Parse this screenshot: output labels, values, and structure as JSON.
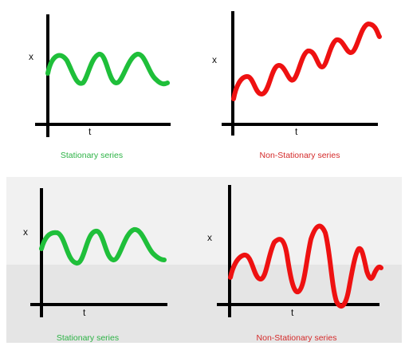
{
  "figure": {
    "panels": [
      {
        "id": "top-stationary",
        "y_label": "x",
        "x_label": "t",
        "caption": "Stationary series",
        "caption_color": "#2db346",
        "line_color": "#1fbf3a"
      },
      {
        "id": "top-nonstationary",
        "y_label": "x",
        "x_label": "t",
        "caption": "Non-Stationary series",
        "caption_color": "#d42a2a",
        "line_color": "#ee1111"
      },
      {
        "id": "bottom-stationary",
        "y_label": "x",
        "x_label": "t",
        "caption": "Stationary series",
        "caption_color": "#2db346",
        "line_color": "#1fbf3a"
      },
      {
        "id": "bottom-nonstationary",
        "y_label": "x",
        "x_label": "t",
        "caption": "Non-Stationary series",
        "caption_color": "#d42a2a",
        "line_color": "#ee1111"
      }
    ]
  }
}
